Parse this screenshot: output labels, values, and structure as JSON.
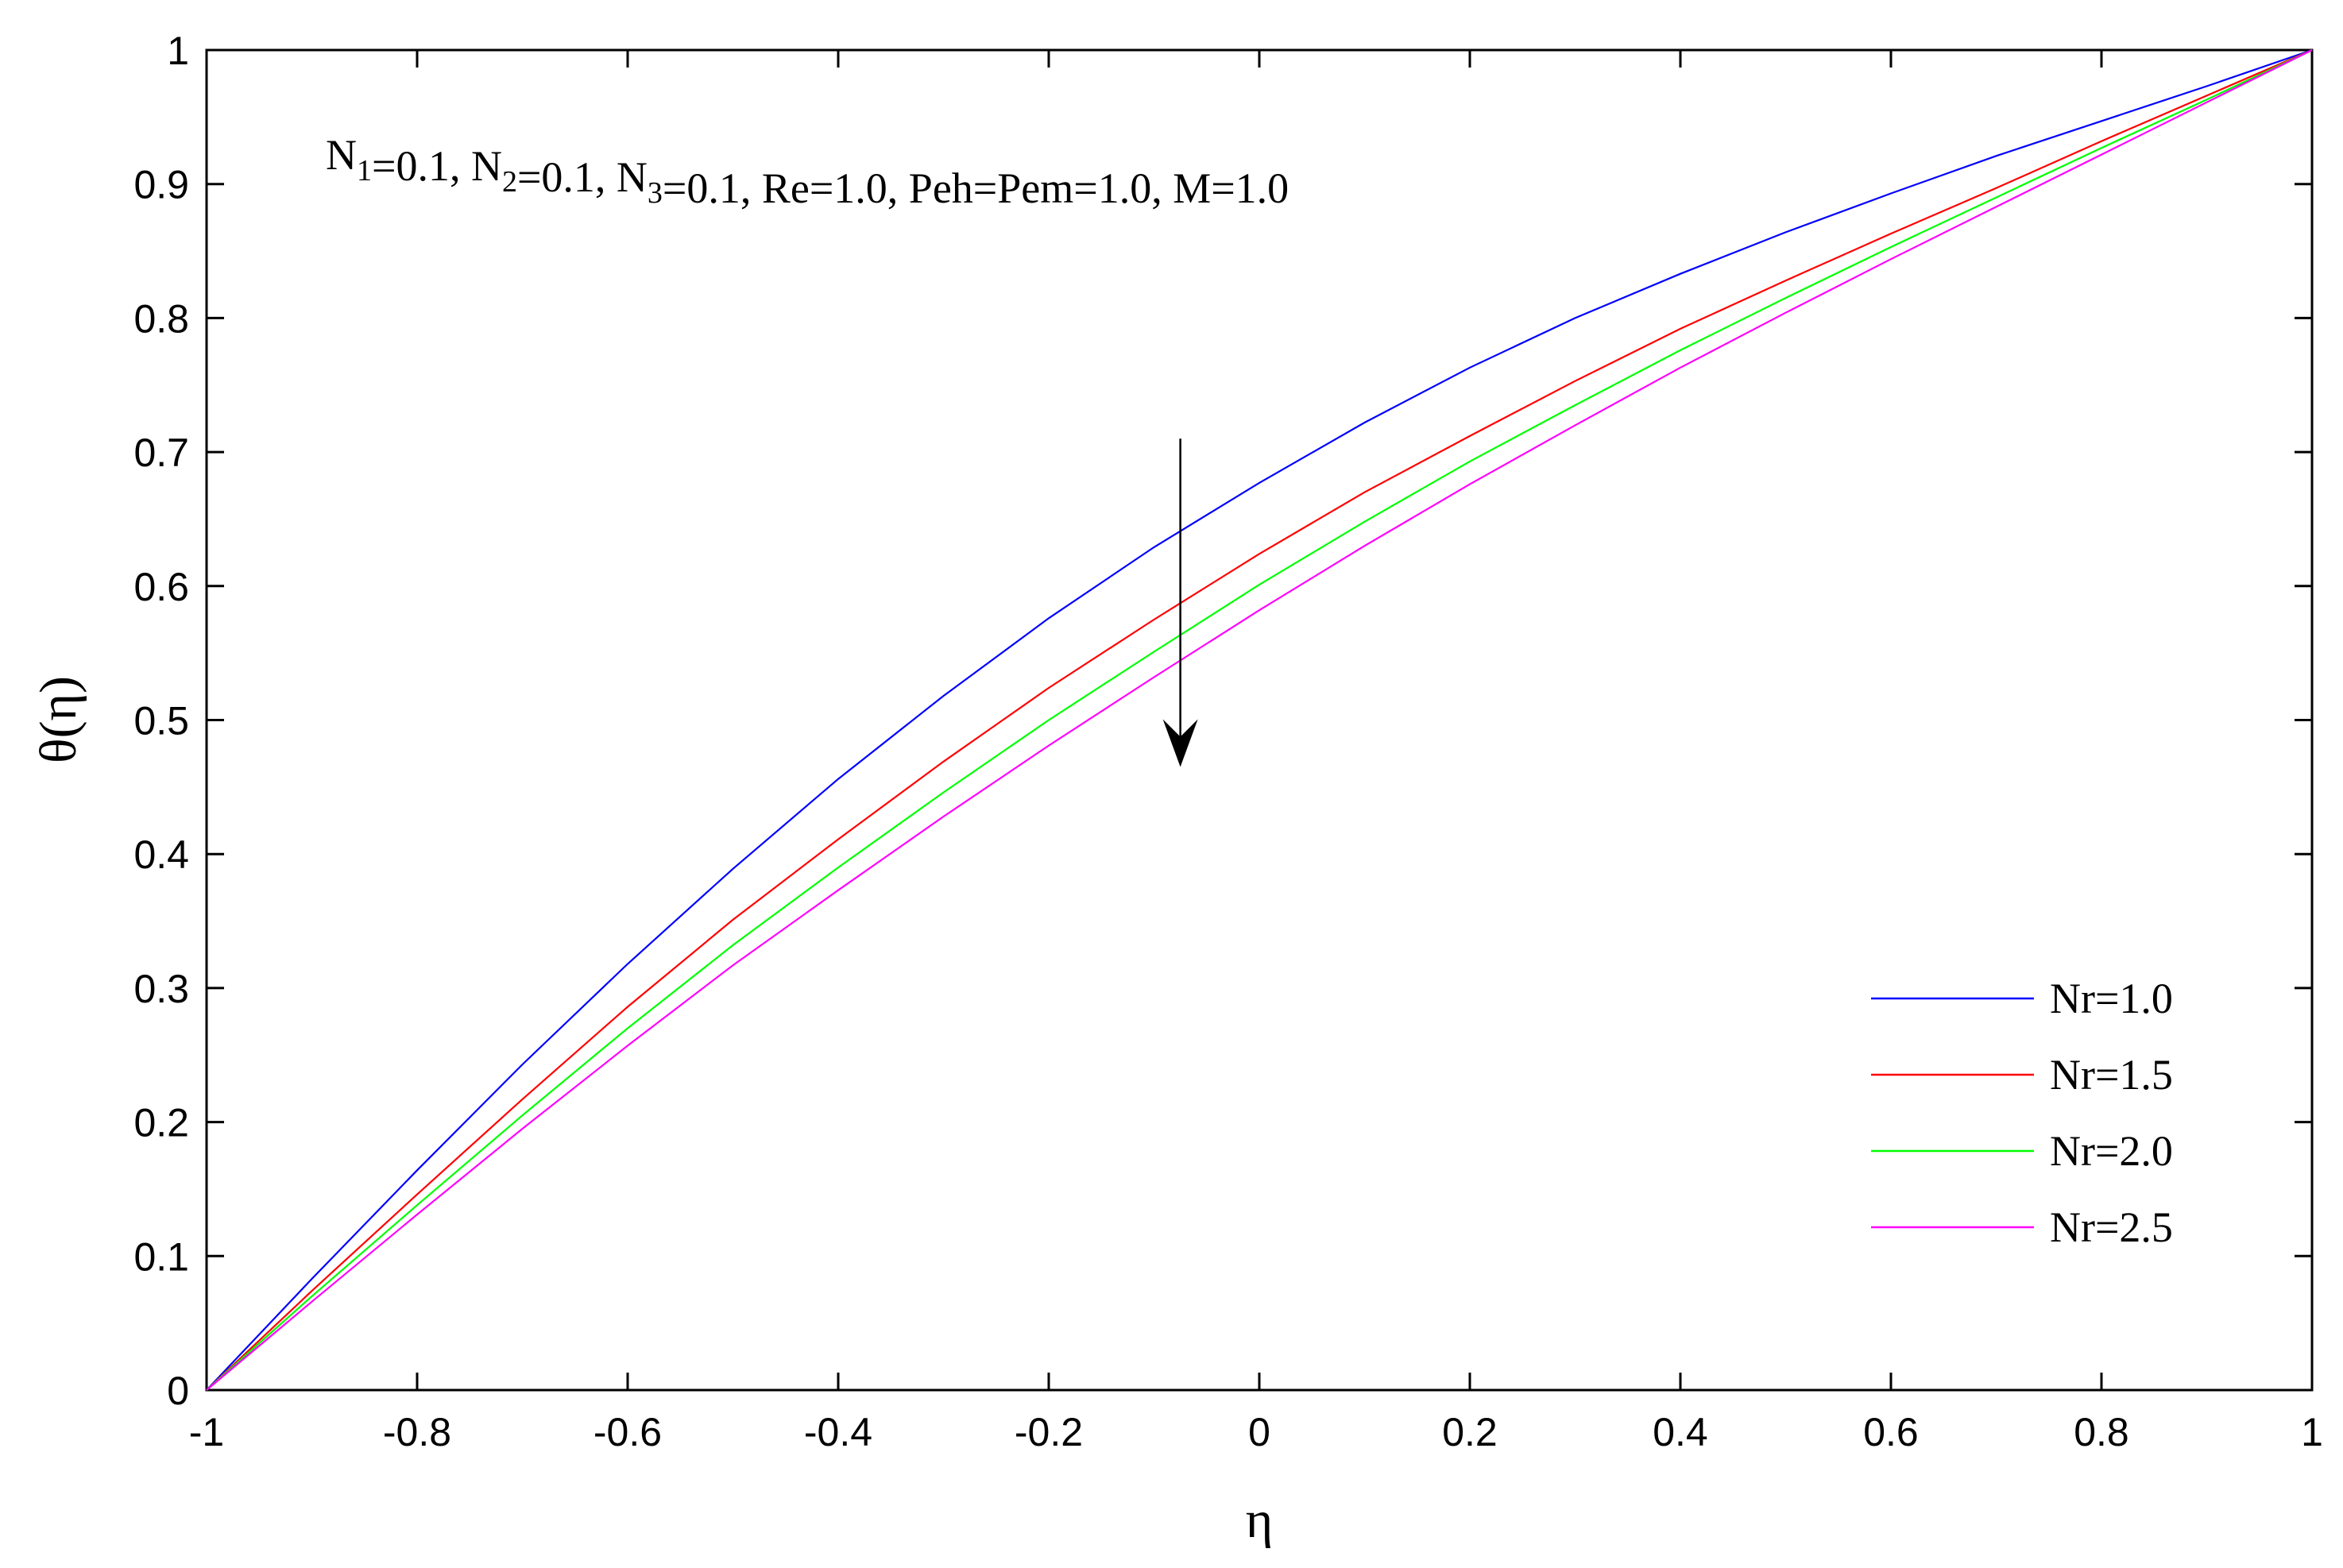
{
  "chart_data": {
    "type": "line",
    "xlabel": "η",
    "ylabel": "θ(η)",
    "xlim": [
      -1,
      1
    ],
    "ylim": [
      0,
      1
    ],
    "xticks": [
      "-1",
      "-0.8",
      "-0.6",
      "-0.4",
      "-0.2",
      "0",
      "0.2",
      "0.4",
      "0.6",
      "0.8",
      "1"
    ],
    "yticks": [
      "0",
      "0.1",
      "0.2",
      "0.3",
      "0.4",
      "0.5",
      "0.6",
      "0.7",
      "0.8",
      "0.9",
      "1"
    ],
    "annotation": {
      "parts": [
        {
          "t": "N",
          "sub": false
        },
        {
          "t": "1",
          "sub": true
        },
        {
          "t": "=0.1, N",
          "sub": false
        },
        {
          "t": "2",
          "sub": true
        },
        {
          "t": "=0.1, N",
          "sub": false
        },
        {
          "t": "3",
          "sub": true
        },
        {
          "t": "=0.1, Re=1.0, Peh=Pem=1.0, M=1.0",
          "sub": false
        }
      ]
    },
    "arrow": {
      "x": -0.075,
      "y_from": 0.71,
      "y_to": 0.465,
      "meaning": "increasing Nr"
    },
    "legend_position": "bottom-right",
    "grid": false,
    "x": [
      -1,
      -0.9,
      -0.8,
      -0.7,
      -0.6,
      -0.5,
      -0.4,
      -0.3,
      -0.2,
      -0.1,
      0,
      0.1,
      0.2,
      0.3,
      0.4,
      0.5,
      0.6,
      0.7,
      0.8,
      0.9,
      1
    ],
    "series": [
      {
        "name": "Nr=1.0",
        "color": "#0000ff",
        "values": [
          0,
          0.083,
          0.164,
          0.243,
          0.318,
          0.389,
          0.456,
          0.518,
          0.576,
          0.629,
          0.677,
          0.722,
          0.763,
          0.8,
          0.833,
          0.864,
          0.893,
          0.921,
          0.947,
          0.973,
          1
        ]
      },
      {
        "name": "Nr=1.5",
        "color": "#ff0000",
        "values": [
          0,
          0.074,
          0.146,
          0.217,
          0.286,
          0.351,
          0.411,
          0.469,
          0.524,
          0.575,
          0.624,
          0.67,
          0.712,
          0.753,
          0.792,
          0.828,
          0.863,
          0.897,
          0.932,
          0.966,
          1
        ]
      },
      {
        "name": "Nr=2.0",
        "color": "#00ff00",
        "values": [
          0,
          0.07,
          0.138,
          0.205,
          0.27,
          0.332,
          0.39,
          0.446,
          0.5,
          0.551,
          0.601,
          0.648,
          0.693,
          0.735,
          0.776,
          0.815,
          0.853,
          0.89,
          0.927,
          0.963,
          1
        ]
      },
      {
        "name": "Nr=2.5",
        "color": "#ff00ff",
        "values": [
          0,
          0.066,
          0.131,
          0.195,
          0.257,
          0.317,
          0.373,
          0.428,
          0.481,
          0.532,
          0.582,
          0.63,
          0.676,
          0.72,
          0.763,
          0.804,
          0.844,
          0.883,
          0.922,
          0.961,
          1
        ]
      }
    ]
  }
}
